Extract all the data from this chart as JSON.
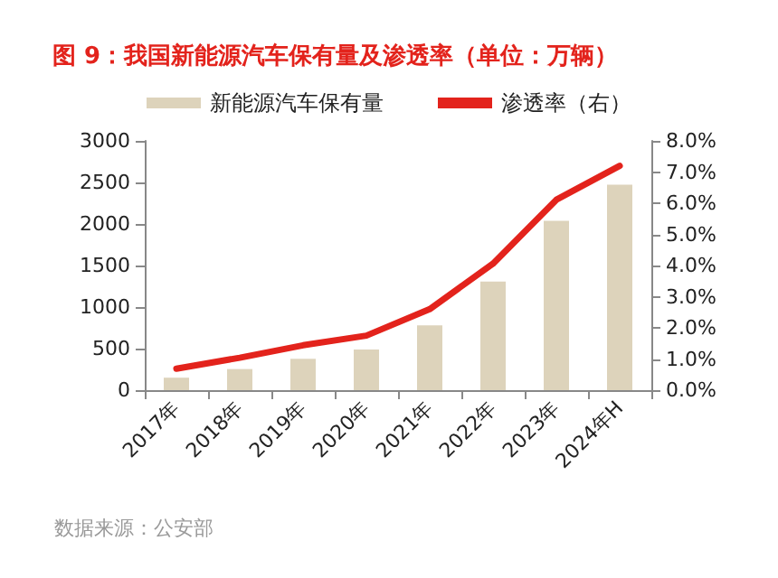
{
  "chart_data": {
    "type": "bar",
    "title": "图 9：我国新能源汽车保有量及渗透率（单位：万辆）",
    "categories": [
      "2017年",
      "2018年",
      "2019年",
      "2020年",
      "2021年",
      "2022年",
      "2023年",
      "2024年H"
    ],
    "series": [
      {
        "name": "新能源汽车保有量",
        "color": "#ddd3bb",
        "values": [
          150,
          254,
          377,
          488,
          781,
          1308,
          2037,
          2473
        ]
      },
      {
        "name": "渗透率（右）",
        "type": "line",
        "axis": "y2",
        "color": "#e3231c",
        "values": [
          0.69,
          1.04,
          1.44,
          1.75,
          2.6,
          4.06,
          6.11,
          7.2
        ]
      }
    ],
    "ylim": [
      0,
      3000
    ],
    "yticks": [
      0,
      500,
      1000,
      1500,
      2000,
      2500,
      3000
    ],
    "y2lim": [
      0,
      8
    ],
    "y2ticks": [
      {
        "value": 0,
        "label": "0.0%"
      },
      {
        "value": 1,
        "label": "1.0%"
      },
      {
        "value": 2,
        "label": "2.0%"
      },
      {
        "value": 3,
        "label": "3.0%"
      },
      {
        "value": 4,
        "label": "4.0%"
      },
      {
        "value": 5,
        "label": "5.0%"
      },
      {
        "value": 6,
        "label": "6.0%"
      },
      {
        "value": 7,
        "label": "7.0%"
      },
      {
        "value": 8,
        "label": "8.0%"
      }
    ],
    "grid": false,
    "legend": "top",
    "marker": "none",
    "line_style": "solid",
    "annotations": [
      "数据来源：公安部"
    ]
  }
}
